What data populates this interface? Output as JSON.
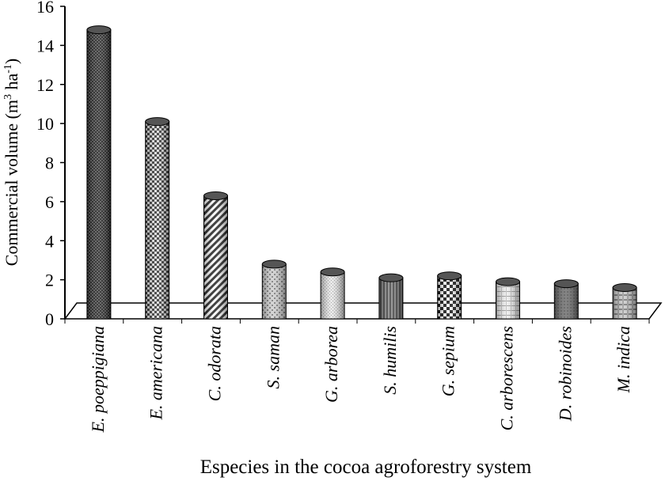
{
  "chart_data": {
    "type": "bar",
    "title": "",
    "ylabel_main": "Commercial volume (m",
    "ylabel_sup1": "3",
    "ylabel_mid": " ha",
    "ylabel_sup2": "-1",
    "ylabel_end": ")",
    "xlabel": "Especies in the cocoa agroforestry system",
    "ylim": [
      0,
      16
    ],
    "yticks": [
      "0",
      "2",
      "4",
      "6",
      "8",
      "10",
      "12",
      "14",
      "16"
    ],
    "categories": [
      "E. poeppigiana",
      "E. americana",
      "C. odorata",
      "S. saman",
      "G. arborea",
      "S. humilis",
      "G. sepium",
      "C. arborescens",
      "D. robinoides",
      "M. indica"
    ],
    "values": [
      14.8,
      10.1,
      6.3,
      2.8,
      2.4,
      2.1,
      2.2,
      1.9,
      1.8,
      1.6
    ],
    "grid": false
  }
}
